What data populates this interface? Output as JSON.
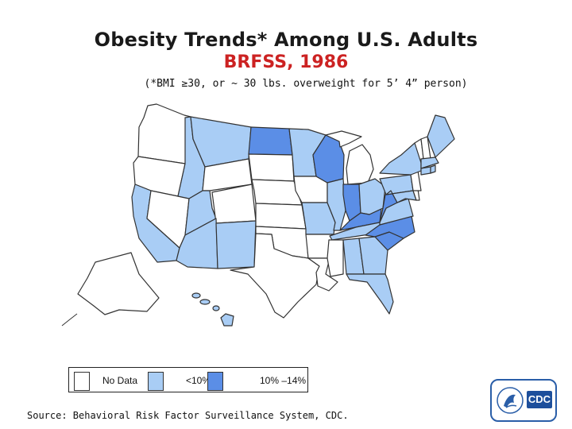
{
  "title": "Obesity Trends* Among U.S. Adults",
  "subtitle": "BRFSS, 1986",
  "note": "(*BMI ≥30, or ~ 30 lbs. overweight for 5’ 4” person)",
  "legend": {
    "items": [
      {
        "label": "No Data",
        "color": "#ffffff"
      },
      {
        "label": "<10%",
        "color": "#a9cdf5"
      },
      {
        "label": "10% –14%",
        "color": "#5b8ee6"
      }
    ]
  },
  "source": "Source: Behavioral Risk Factor Surveillance System, CDC.",
  "logo": {
    "text": "CDC",
    "emblem": "hhs-eagle-icon"
  },
  "colors": {
    "no_data": "#ffffff",
    "lt10": "#a9cdf5",
    "p10_14": "#5b8ee6",
    "border": "#333333"
  },
  "states": {
    "no_data": [
      "Washington",
      "Oregon",
      "Nevada",
      "Wyoming",
      "Colorado",
      "Nebraska",
      "South Dakota",
      "Kansas",
      "Oklahoma",
      "Texas",
      "Iowa",
      "Arkansas",
      "Louisiana",
      "Mississippi",
      "Alaska",
      "Michigan",
      "Vermont",
      "New Hampshire",
      "New Jersey",
      "Delaware"
    ],
    "lt10": [
      "California",
      "Idaho",
      "Montana",
      "Utah",
      "Arizona",
      "New Mexico",
      "Minnesota",
      "Missouri",
      "Illinois",
      "Ohio",
      "Tennessee",
      "Alabama",
      "Georgia",
      "Florida",
      "Virginia",
      "Maryland",
      "Pennsylvania",
      "New York",
      "Connecticut",
      "Rhode Island",
      "Massachusetts",
      "Maine",
      "Hawaii"
    ],
    "p10_14": [
      "North Dakota",
      "Wisconsin",
      "Indiana",
      "Kentucky",
      "West Virginia",
      "North Carolina",
      "South Carolina"
    ]
  }
}
